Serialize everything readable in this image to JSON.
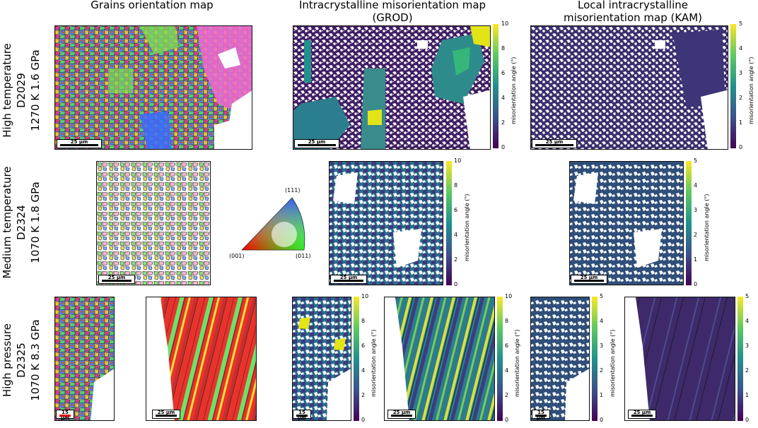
{
  "columns": {
    "col1": "Grains orientation map",
    "col2_line1": "Intracrystalline misorientation map",
    "col2_line2": "(GROD)",
    "col3_line1": "Local intracrystalline",
    "col3_line2": "misorientation map (KAM)"
  },
  "rows": [
    {
      "line1": "High temperature",
      "line2": "D2029",
      "line3": "1270 K   1.6 GPa"
    },
    {
      "line1": "Medium temperature",
      "line2": "D2324",
      "line3": "1070 K   1.8 GPa"
    },
    {
      "line1": "High pressure",
      "line2": "D2325",
      "line3": "1070 K   8.3 GPa"
    }
  ],
  "scalebars": {
    "s25": "25 µm",
    "s15": "15 µm"
  },
  "ipf": {
    "top": "(111)",
    "left": "(001)",
    "right": "(011)"
  },
  "colorbar": {
    "label": "misorientation angle (°)",
    "grod_ticks": [
      "0",
      "2",
      "4",
      "6",
      "8",
      "10"
    ],
    "kam_ticks": [
      "0",
      "1",
      "2",
      "3",
      "4",
      "5"
    ]
  }
}
